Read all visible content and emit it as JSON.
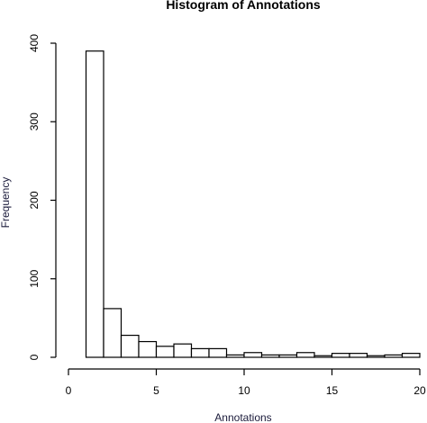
{
  "chart_data": {
    "type": "bar",
    "title": "Histogram of Annotations",
    "xlabel": "Annotations",
    "ylabel": "Frequency",
    "xlim": [
      0,
      20
    ],
    "ylim": [
      0,
      400
    ],
    "x_ticks": [
      "0",
      "5",
      "10",
      "15",
      "20"
    ],
    "y_ticks": [
      "0",
      "100",
      "200",
      "300",
      "400"
    ],
    "bins": [
      {
        "start": 1,
        "end": 2,
        "value": 390
      },
      {
        "start": 2,
        "end": 3,
        "value": 62
      },
      {
        "start": 3,
        "end": 4,
        "value": 28
      },
      {
        "start": 4,
        "end": 5,
        "value": 20
      },
      {
        "start": 5,
        "end": 6,
        "value": 14
      },
      {
        "start": 6,
        "end": 7,
        "value": 17
      },
      {
        "start": 7,
        "end": 8,
        "value": 11
      },
      {
        "start": 8,
        "end": 9,
        "value": 11
      },
      {
        "start": 9,
        "end": 10,
        "value": 3
      },
      {
        "start": 10,
        "end": 11,
        "value": 6
      },
      {
        "start": 11,
        "end": 12,
        "value": 3
      },
      {
        "start": 12,
        "end": 13,
        "value": 3
      },
      {
        "start": 13,
        "end": 14,
        "value": 6
      },
      {
        "start": 14,
        "end": 15,
        "value": 2
      },
      {
        "start": 15,
        "end": 16,
        "value": 5
      },
      {
        "start": 16,
        "end": 17,
        "value": 5
      },
      {
        "start": 17,
        "end": 18,
        "value": 2
      },
      {
        "start": 18,
        "end": 19,
        "value": 3
      },
      {
        "start": 19,
        "end": 20,
        "value": 5
      }
    ]
  }
}
